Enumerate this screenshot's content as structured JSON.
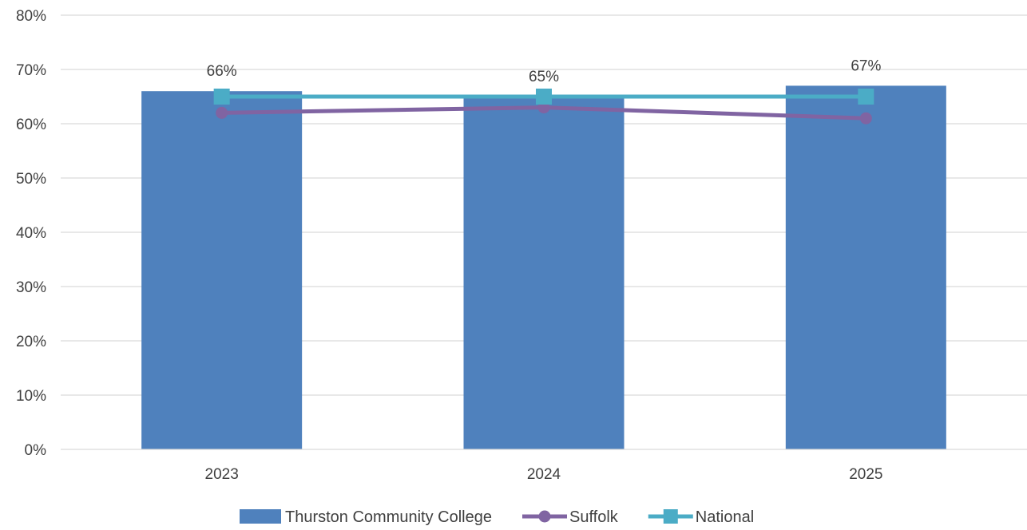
{
  "chart_data": {
    "type": "bar",
    "categories": [
      "2023",
      "2024",
      "2025"
    ],
    "ylim": [
      0,
      80
    ],
    "yticks": [
      0,
      10,
      20,
      30,
      40,
      50,
      60,
      70,
      80
    ],
    "ytick_format": "{v}%",
    "grid": true,
    "legend_position": "bottom",
    "title": "",
    "xlabel": "",
    "ylabel": "",
    "series": [
      {
        "name": "Thurston Community College",
        "kind": "bar",
        "values": [
          66,
          65,
          67
        ],
        "data_labels": [
          "66%",
          "65%",
          "67%"
        ],
        "color": "#4f81bd"
      },
      {
        "name": "Suffolk",
        "kind": "line",
        "marker": "circle",
        "values": [
          62,
          63,
          61
        ],
        "color": "#8064a2"
      },
      {
        "name": "National",
        "kind": "line",
        "marker": "square",
        "values": [
          65,
          65,
          65
        ],
        "color": "#4bacc6"
      }
    ]
  }
}
